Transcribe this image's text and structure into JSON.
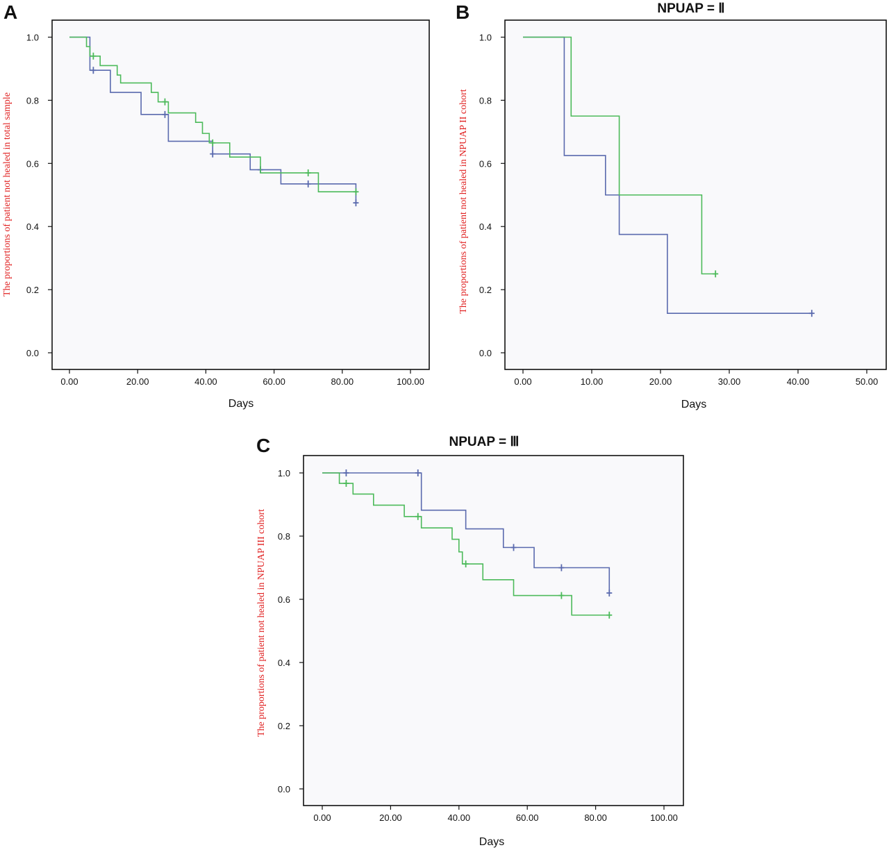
{
  "colors": {
    "series_blue": "#5a6aae",
    "series_green": "#4cba5a",
    "ylabel": "#e02020"
  },
  "chart_data": [
    {
      "panel": "A",
      "title": "",
      "type": "line",
      "xlabel": "Days",
      "ylabel": "The proportions of patient not healed in total sample",
      "xlim": [
        0,
        100
      ],
      "ylim": [
        0,
        1
      ],
      "x_ticks": [
        "0.00",
        "20.00",
        "40.00",
        "60.00",
        "80.00",
        "100.00"
      ],
      "y_ticks": [
        "0.0",
        "0.2",
        "0.4",
        "0.6",
        "0.8",
        "1.0"
      ],
      "series": [
        {
          "color": "#5a6aae",
          "steps": [
            [
              0,
              1.0
            ],
            [
              6,
              0.895
            ],
            [
              12,
              0.825
            ],
            [
              21,
              0.755
            ],
            [
              29,
              0.67
            ],
            [
              42,
              0.63
            ],
            [
              53,
              0.58
            ],
            [
              62,
              0.535
            ],
            [
              84,
              0.475
            ]
          ],
          "censored": [
            [
              7,
              0.895
            ],
            [
              28,
              0.755
            ],
            [
              42,
              0.63
            ],
            [
              56,
              0.58
            ],
            [
              70,
              0.535
            ],
            [
              84,
              0.475
            ]
          ]
        },
        {
          "color": "#4cba5a",
          "steps": [
            [
              0,
              1.0
            ],
            [
              5,
              0.97
            ],
            [
              6,
              0.94
            ],
            [
              9,
              0.91
            ],
            [
              14,
              0.88
            ],
            [
              15,
              0.855
            ],
            [
              24,
              0.825
            ],
            [
              26,
              0.795
            ],
            [
              29,
              0.76
            ],
            [
              37,
              0.73
            ],
            [
              39,
              0.695
            ],
            [
              41,
              0.665
            ],
            [
              47,
              0.62
            ],
            [
              56,
              0.57
            ],
            [
              73,
              0.51
            ]
          ],
          "censored": [
            [
              7,
              0.94
            ],
            [
              28,
              0.795
            ],
            [
              42,
              0.665
            ],
            [
              70,
              0.57
            ],
            [
              84,
              0.51
            ]
          ]
        }
      ]
    },
    {
      "panel": "B",
      "title": "NPUAP = Ⅱ",
      "type": "line",
      "xlabel": "Days",
      "ylabel": "The proportions of patient not healed in NPUAP II cohort",
      "xlim": [
        0,
        50
      ],
      "ylim": [
        0,
        1
      ],
      "x_ticks": [
        "0.00",
        "10.00",
        "20.00",
        "30.00",
        "40.00",
        "50.00"
      ],
      "y_ticks": [
        "0.0",
        "0.2",
        "0.4",
        "0.6",
        "0.8",
        "1.0"
      ],
      "series": [
        {
          "color": "#5a6aae",
          "steps": [
            [
              0,
              1.0
            ],
            [
              6,
              0.625
            ],
            [
              12,
              0.5
            ],
            [
              14,
              0.375
            ],
            [
              21,
              0.125
            ],
            [
              42,
              0.125
            ]
          ],
          "censored": [
            [
              42,
              0.125
            ]
          ]
        },
        {
          "color": "#4cba5a",
          "steps": [
            [
              0,
              1.0
            ],
            [
              7,
              0.75
            ],
            [
              14,
              0.5
            ],
            [
              26,
              0.25
            ],
            [
              28,
              0.25
            ]
          ],
          "censored": [
            [
              28,
              0.25
            ]
          ]
        }
      ]
    },
    {
      "panel": "C",
      "title": "NPUAP = Ⅲ",
      "type": "line",
      "xlabel": "Days",
      "ylabel": "The proportions of patient not healed in NPUAP III cohort",
      "xlim": [
        0,
        100
      ],
      "ylim": [
        0,
        1
      ],
      "x_ticks": [
        "0.00",
        "20.00",
        "40.00",
        "60.00",
        "80.00",
        "100.00"
      ],
      "y_ticks": [
        "0.0",
        "0.2",
        "0.4",
        "0.6",
        "0.8",
        "1.0"
      ],
      "series": [
        {
          "color": "#5a6aae",
          "steps": [
            [
              0,
              1.0
            ],
            [
              29,
              0.882
            ],
            [
              42,
              0.823
            ],
            [
              53,
              0.764
            ],
            [
              62,
              0.7
            ],
            [
              84,
              0.62
            ]
          ],
          "censored": [
            [
              7,
              1.0
            ],
            [
              28,
              1.0
            ],
            [
              56,
              0.764
            ],
            [
              70,
              0.7
            ],
            [
              84,
              0.62
            ]
          ]
        },
        {
          "color": "#4cba5a",
          "steps": [
            [
              0,
              1.0
            ],
            [
              5,
              0.967
            ],
            [
              9,
              0.933
            ],
            [
              15,
              0.898
            ],
            [
              24,
              0.862
            ],
            [
              29,
              0.826
            ],
            [
              38,
              0.79
            ],
            [
              40,
              0.75
            ],
            [
              41,
              0.712
            ],
            [
              47,
              0.662
            ],
            [
              56,
              0.612
            ],
            [
              73,
              0.55
            ]
          ],
          "censored": [
            [
              7,
              0.967
            ],
            [
              28,
              0.862
            ],
            [
              42,
              0.712
            ],
            [
              70,
              0.612
            ],
            [
              84,
              0.55
            ]
          ]
        }
      ]
    }
  ]
}
